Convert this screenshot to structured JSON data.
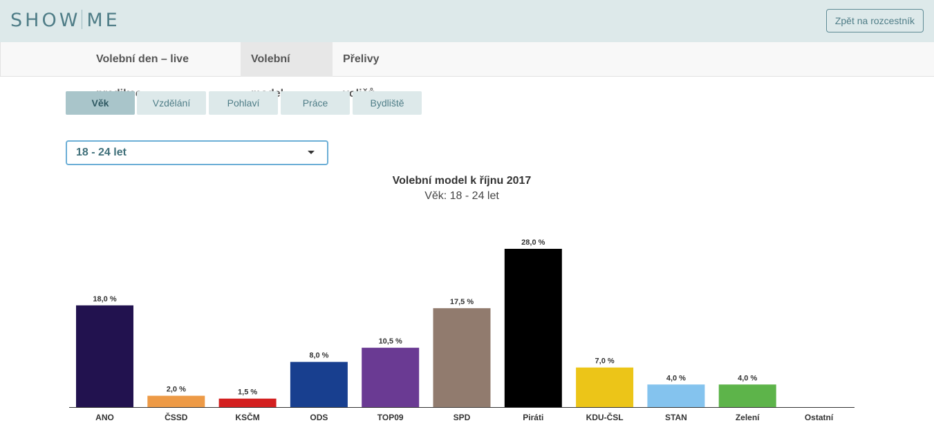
{
  "header": {
    "logo_left": "SHOW",
    "logo_right": "ME",
    "back_button": "Zpět na rozcestník"
  },
  "nav": {
    "tabs": [
      {
        "label": "Volební den – live predikce",
        "active": false
      },
      {
        "label": "Volební model",
        "active": true
      },
      {
        "label": "Přelivy voličů",
        "active": false
      }
    ]
  },
  "subtabs": [
    {
      "label": "Věk",
      "active": true
    },
    {
      "label": "Vzdělání",
      "active": false
    },
    {
      "label": "Pohlaví",
      "active": false
    },
    {
      "label": "Práce",
      "active": false
    },
    {
      "label": "Bydliště",
      "active": false
    }
  ],
  "select": {
    "value": "18 - 24 let"
  },
  "chart_data": {
    "type": "bar",
    "title": "Volební model k říjnu 2017",
    "subtitle": "Věk: 18 - 24 let",
    "categories": [
      "ANO",
      "ČSSD",
      "KSČM",
      "ODS",
      "TOP09",
      "SPD",
      "Piráti",
      "KDU-ČSL",
      "STAN",
      "Zelení",
      "Ostatní"
    ],
    "values": [
      18.0,
      2.0,
      1.5,
      8.0,
      10.5,
      17.5,
      28.0,
      7.0,
      4.0,
      4.0,
      0
    ],
    "data_labels": [
      "18,0 %",
      "2,0 %",
      "1,5 %",
      "8,0 %",
      "10,5 %",
      "17,5 %",
      "28,0 %",
      "7,0 %",
      "4,0 %",
      "4,0 %",
      ""
    ],
    "colors": [
      "#22124f",
      "#ed9a46",
      "#d31f1f",
      "#183f8f",
      "#6a3a93",
      "#917b6e",
      "#000000",
      "#ecc518",
      "#84c3ee",
      "#5db44a",
      "#cccccc"
    ],
    "grid": false,
    "legend": "none"
  }
}
